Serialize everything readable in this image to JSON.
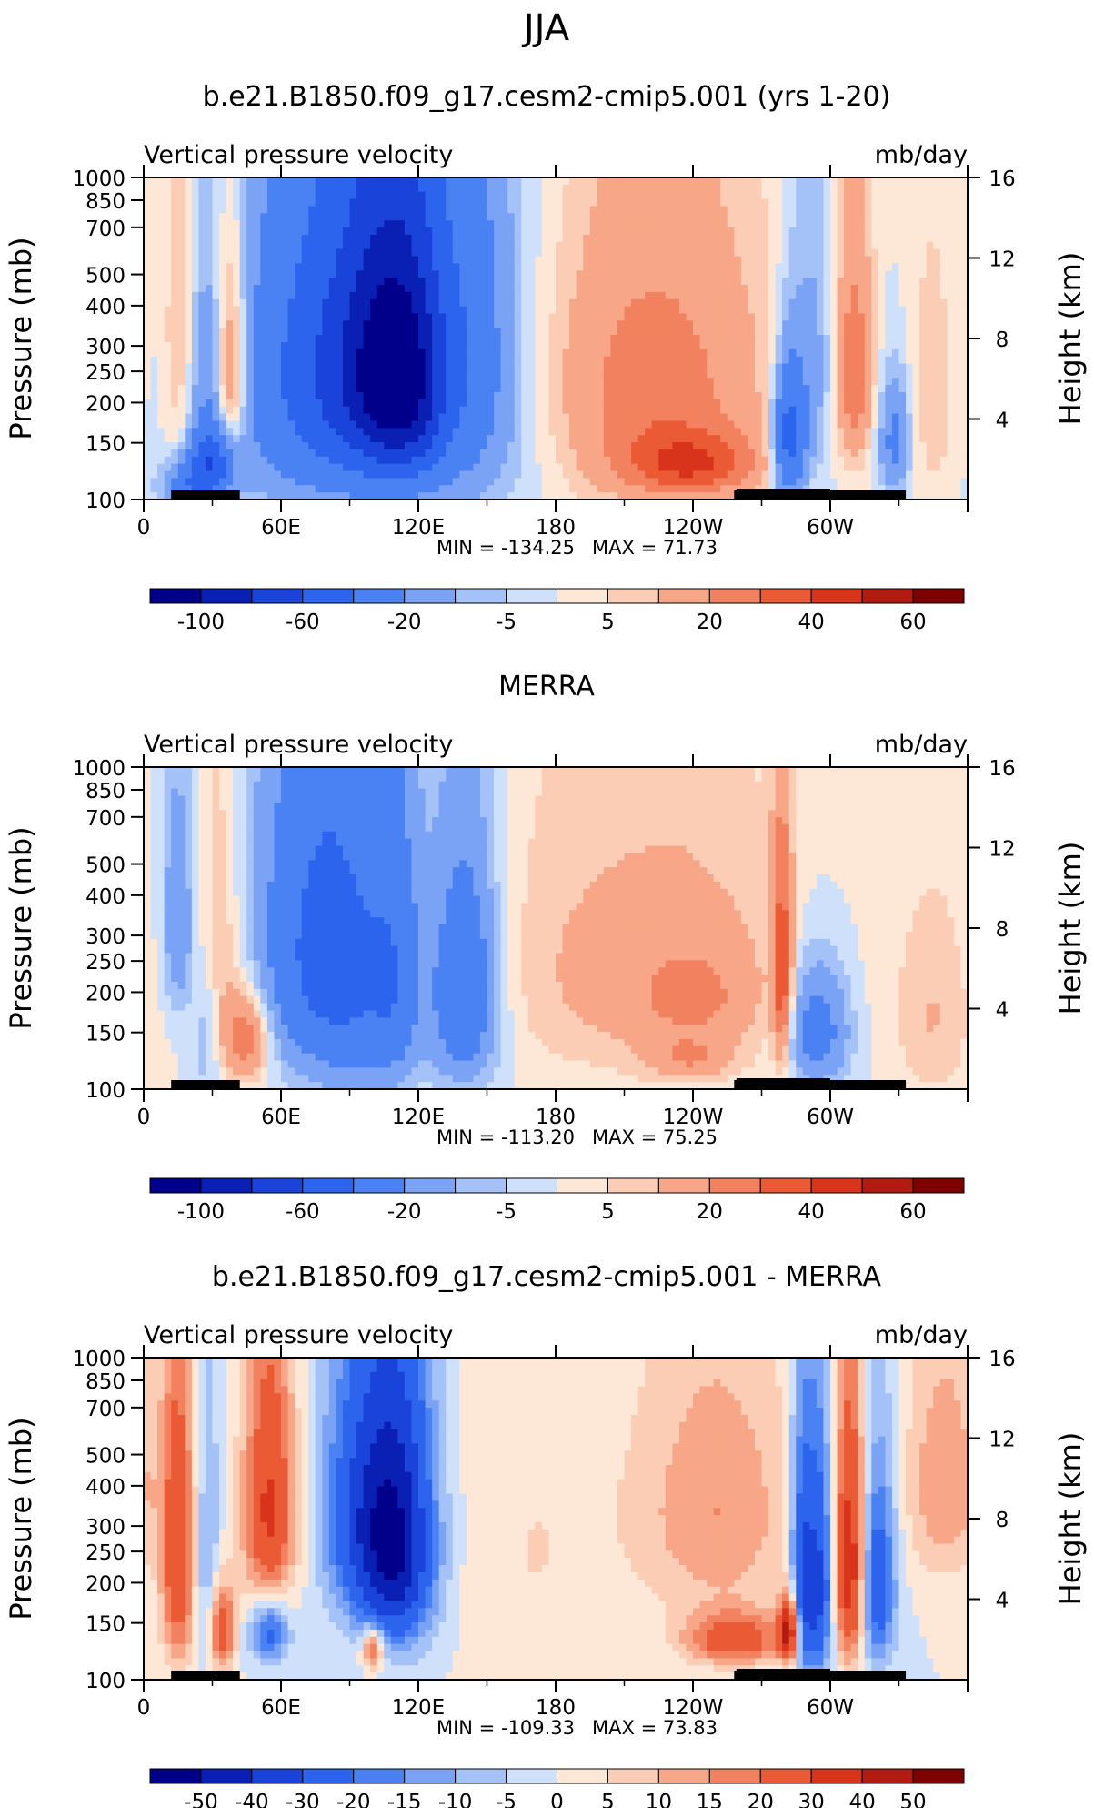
{
  "page_title": "JJA",
  "chart_data": [
    {
      "type": "heatmap",
      "title": "b.e21.B1850.f09_g17.cesm2-cmip5.001 (yrs 1-20)",
      "left_label": "Vertical pressure velocity",
      "right_label": "mb/day",
      "ylabel": "Pressure (mb)",
      "y2label": "Height (km)",
      "x_ticks": [
        "0",
        "60E",
        "120E",
        "180",
        "120W",
        "60W"
      ],
      "y_ticks": [
        "100",
        "150",
        "200",
        "250",
        "300",
        "400",
        "500",
        "700",
        "850",
        "1000"
      ],
      "y2_ticks": [
        "16",
        "12",
        "8",
        "4"
      ],
      "min_label": "MIN = -134.25",
      "max_label": "MAX = 71.73",
      "min": -134.25,
      "max": 71.73,
      "colorbar_labels": [
        "-100",
        "-60",
        "-20",
        "-5",
        "5",
        "20",
        "40",
        "60"
      ],
      "features": [
        {
          "lon": 15,
          "p": 350,
          "v": 12,
          "sx": 5,
          "sy": 300
        },
        {
          "lon": 38,
          "p": 420,
          "v": 30,
          "sx": 5,
          "sy": 220
        },
        {
          "lon": 28,
          "p": 500,
          "v": -12,
          "sx": 5,
          "sy": 250
        },
        {
          "lon": 30,
          "p": 760,
          "v": -45,
          "sx": 7,
          "sy": 120
        },
        {
          "lon": 20,
          "p": 900,
          "v": -30,
          "sx": 8,
          "sy": 100
        },
        {
          "lon": 88,
          "p": 350,
          "v": -45,
          "sx": 25,
          "sy": 300
        },
        {
          "lon": 105,
          "p": 400,
          "v": -50,
          "sx": 12,
          "sy": 250
        },
        {
          "lon": 118,
          "p": 420,
          "v": -40,
          "sx": 10,
          "sy": 250
        },
        {
          "lon": 140,
          "p": 300,
          "v": -20,
          "sx": 15,
          "sy": 320
        },
        {
          "lon": 100,
          "p": 560,
          "v": -25,
          "sx": 45,
          "sy": 380
        },
        {
          "lon": 180,
          "p": 300,
          "v": -3,
          "sx": 30,
          "sy": 400
        },
        {
          "lon": 220,
          "p": 550,
          "v": 22,
          "sx": 35,
          "sy": 340
        },
        {
          "lon": 240,
          "p": 780,
          "v": 30,
          "sx": 20,
          "sy": 120
        },
        {
          "lon": 215,
          "p": 300,
          "v": 8,
          "sx": 40,
          "sy": 250
        },
        {
          "lon": 282,
          "p": 650,
          "v": -50,
          "sx": 5,
          "sy": 220
        },
        {
          "lon": 293,
          "p": 400,
          "v": -15,
          "sx": 8,
          "sy": 300
        },
        {
          "lon": 310,
          "p": 400,
          "v": 28,
          "sx": 6,
          "sy": 230
        },
        {
          "lon": 328,
          "p": 650,
          "v": -25,
          "sx": 5,
          "sy": 200
        },
        {
          "lon": 345,
          "p": 500,
          "v": 8,
          "sx": 10,
          "sy": 400
        }
      ]
    },
    {
      "type": "heatmap",
      "title": "MERRA",
      "left_label": "Vertical pressure velocity",
      "right_label": "mb/day",
      "ylabel": "Pressure (mb)",
      "y2label": "Height (km)",
      "x_ticks": [
        "0",
        "60E",
        "120E",
        "180",
        "120W",
        "60W"
      ],
      "y_ticks": [
        "100",
        "150",
        "200",
        "250",
        "300",
        "400",
        "500",
        "700",
        "850",
        "1000"
      ],
      "y2_ticks": [
        "16",
        "12",
        "8",
        "4"
      ],
      "min_label": "MIN = -113.20",
      "max_label": "MAX = 75.25",
      "min": -113.2,
      "max": 75.25,
      "colorbar_labels": [
        "-100",
        "-60",
        "-20",
        "-5",
        "5",
        "20",
        "40",
        "60"
      ],
      "features": [
        {
          "lon": 15,
          "p": 300,
          "v": -18,
          "sx": 5,
          "sy": 180
        },
        {
          "lon": 32,
          "p": 450,
          "v": 15,
          "sx": 7,
          "sy": 300
        },
        {
          "lon": 45,
          "p": 700,
          "v": 28,
          "sx": 7,
          "sy": 150
        },
        {
          "lon": 28,
          "p": 650,
          "v": -15,
          "sx": 5,
          "sy": 250
        },
        {
          "lon": 75,
          "p": 350,
          "v": -38,
          "sx": 18,
          "sy": 300
        },
        {
          "lon": 92,
          "p": 500,
          "v": -22,
          "sx": 15,
          "sy": 350
        },
        {
          "lon": 110,
          "p": 450,
          "v": -25,
          "sx": 8,
          "sy": 300
        },
        {
          "lon": 140,
          "p": 500,
          "v": -38,
          "sx": 10,
          "sy": 280
        },
        {
          "lon": 180,
          "p": 350,
          "v": 3,
          "sx": 20,
          "sy": 300
        },
        {
          "lon": 230,
          "p": 450,
          "v": 15,
          "sx": 40,
          "sy": 300
        },
        {
          "lon": 240,
          "p": 520,
          "v": 12,
          "sx": 15,
          "sy": 100
        },
        {
          "lon": 238,
          "p": 800,
          "v": 15,
          "sx": 12,
          "sy": 80
        },
        {
          "lon": 279,
          "p": 450,
          "v": 38,
          "sx": 3,
          "sy": 250
        },
        {
          "lon": 294,
          "p": 650,
          "v": -30,
          "sx": 10,
          "sy": 200
        },
        {
          "lon": 345,
          "p": 600,
          "v": 10,
          "sx": 12,
          "sy": 300
        }
      ]
    },
    {
      "type": "heatmap",
      "title": "b.e21.B1850.f09_g17.cesm2-cmip5.001 - MERRA",
      "left_label": "Vertical pressure velocity",
      "right_label": "mb/day",
      "ylabel": "Pressure (mb)",
      "y2label": "Height (km)",
      "x_ticks": [
        "0",
        "60E",
        "120E",
        "180",
        "120W",
        "60W"
      ],
      "y_ticks": [
        "100",
        "150",
        "200",
        "250",
        "300",
        "400",
        "500",
        "700",
        "850",
        "1000"
      ],
      "y2_ticks": [
        "16",
        "12",
        "8",
        "4"
      ],
      "min_label": "MIN = -109.33",
      "max_label": "MAX = 73.83",
      "min": -109.33,
      "max": 73.83,
      "colorbar_labels": [
        "-50",
        "-40",
        "-30",
        "-20",
        "-15",
        "-10",
        "-5",
        "0",
        "5",
        "10",
        "15",
        "20",
        "30",
        "40",
        "50"
      ],
      "features": [
        {
          "lon": 15,
          "p": 420,
          "v": 30,
          "sx": 5,
          "sy": 300
        },
        {
          "lon": 28,
          "p": 450,
          "v": -12,
          "sx": 4,
          "sy": 300
        },
        {
          "lon": 34,
          "p": 700,
          "v": 30,
          "sx": 4,
          "sy": 150
        },
        {
          "lon": 55,
          "p": 300,
          "v": 32,
          "sx": 8,
          "sy": 200
        },
        {
          "lon": 55,
          "p": 700,
          "v": -25,
          "sx": 6,
          "sy": 120
        },
        {
          "lon": 110,
          "p": 380,
          "v": -50,
          "sx": 12,
          "sy": 250
        },
        {
          "lon": 92,
          "p": 300,
          "v": -20,
          "sx": 12,
          "sy": 200
        },
        {
          "lon": 100,
          "p": 800,
          "v": 30,
          "sx": 3,
          "sy": 80
        },
        {
          "lon": 170,
          "p": 400,
          "v": 5,
          "sx": 25,
          "sy": 350
        },
        {
          "lon": 250,
          "p": 300,
          "v": 15,
          "sx": 25,
          "sy": 200
        },
        {
          "lon": 258,
          "p": 750,
          "v": 28,
          "sx": 15,
          "sy": 100
        },
        {
          "lon": 282,
          "p": 700,
          "v": 45,
          "sx": 3,
          "sy": 120
        },
        {
          "lon": 288,
          "p": 500,
          "v": -35,
          "sx": 4,
          "sy": 300
        },
        {
          "lon": 296,
          "p": 500,
          "v": -30,
          "sx": 4,
          "sy": 300
        },
        {
          "lon": 309,
          "p": 450,
          "v": 40,
          "sx": 5,
          "sy": 280
        },
        {
          "lon": 320,
          "p": 500,
          "v": -30,
          "sx": 6,
          "sy": 250
        },
        {
          "lon": 350,
          "p": 250,
          "v": 15,
          "sx": 12,
          "sy": 150
        }
      ]
    }
  ]
}
